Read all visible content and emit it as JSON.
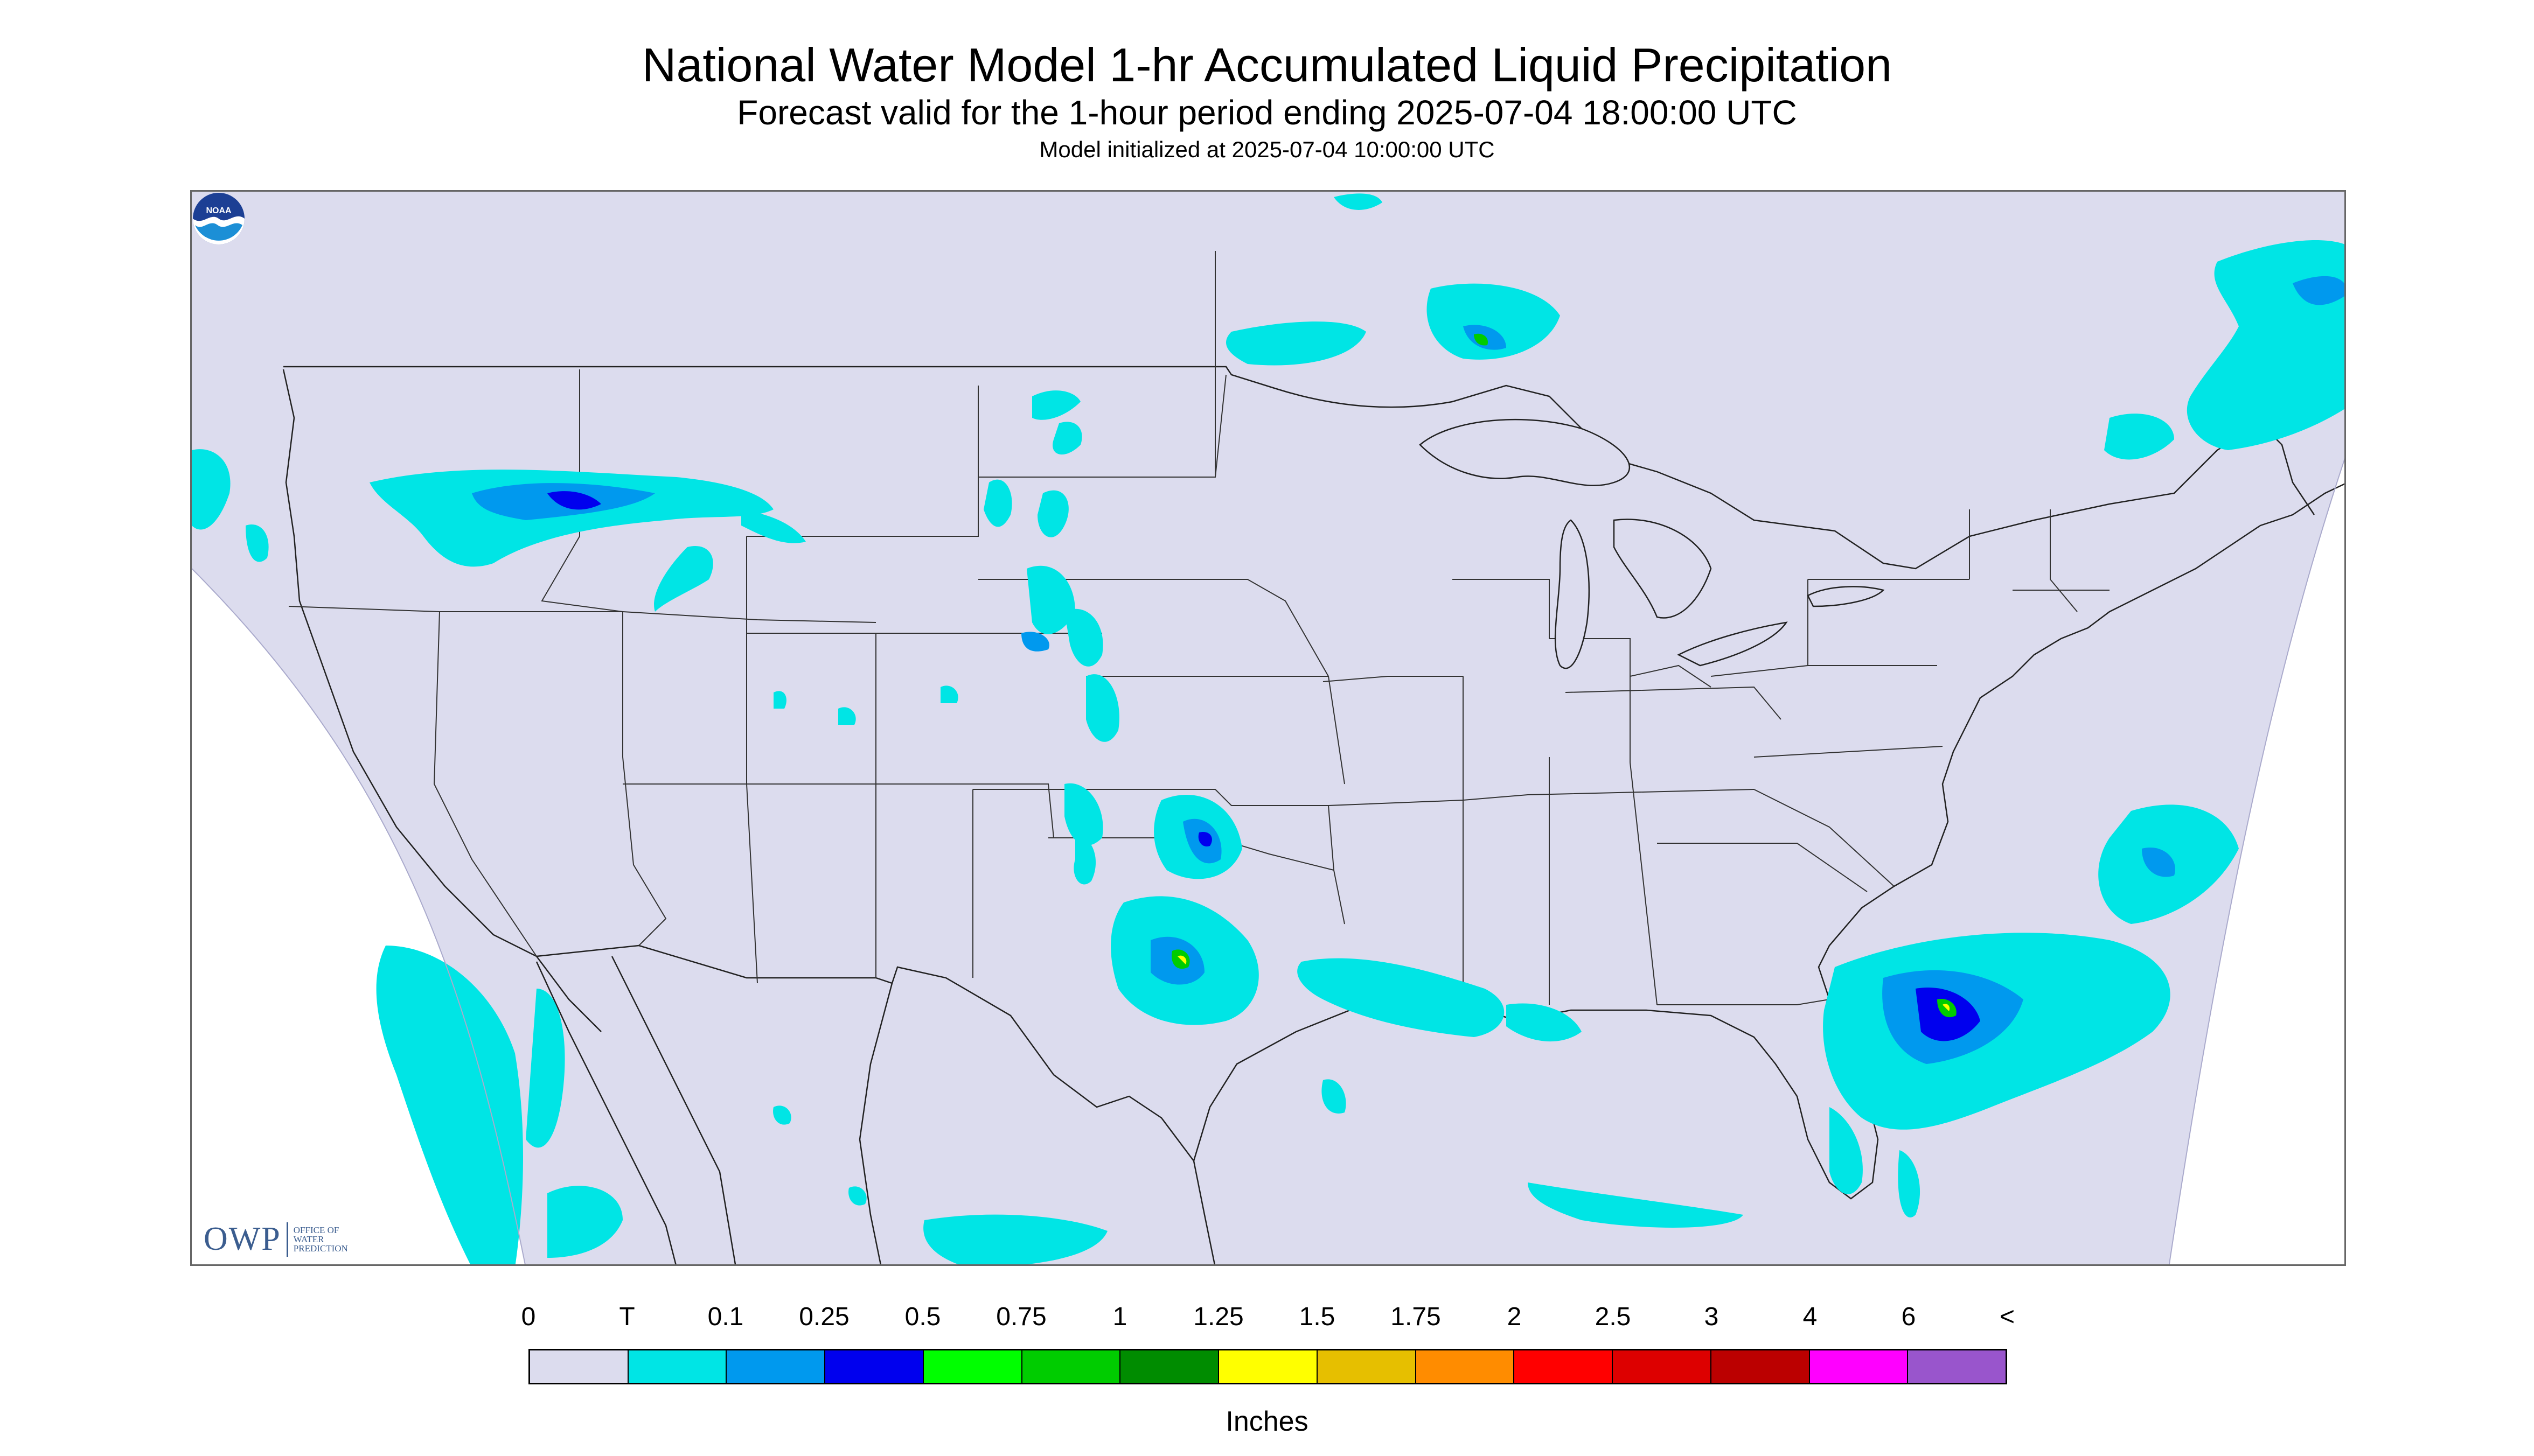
{
  "title": "National Water Model 1-hr Accumulated Liquid Precipitation",
  "subtitle": "Forecast valid for the 1-hour period ending 2025-07-04 18:00:00 UTC",
  "init_line": "Model initialized at 2025-07-04 10:00:00 UTC",
  "colors": {
    "background": "#dcdcee",
    "border": "#333333",
    "trace": "#00e5e5",
    "light": "#0099ee",
    "moderate": "#0000ee",
    "green": "#00ee00",
    "yellow": "#ffff00"
  },
  "map": {
    "projection": "Lambert conformal CONUS",
    "regions_with_precip": [
      "Northern Rockies (Idaho / Montana)",
      "High Plains (Wyoming / Colorado / Dakotas)",
      "Southern Plains (Oklahoma / Texas)",
      "Gulf Coast",
      "Southeast coast / offshore Carolinas",
      "Florida",
      "Ontario / Lake Superior",
      "Quebec / New England",
      "Baja California / Pacific",
      "Mexico"
    ]
  },
  "logos": {
    "owp_letters": "OWP",
    "owp_subtitle": "OFFICE OF WATER PREDICTION",
    "noaa_text": "NOAA",
    "noaa_icon": "noaa-logo"
  },
  "legend": {
    "units": "Inches",
    "tick_labels": [
      "0",
      "T",
      "0.1",
      "0.25",
      "0.5",
      "0.75",
      "1",
      "1.25",
      "1.5",
      "1.75",
      "2",
      "2.5",
      "3",
      "4",
      "6",
      "<"
    ],
    "colors": [
      "#dcdcee",
      "#00e5e5",
      "#0099ee",
      "#0000ee",
      "#00ff00",
      "#00cc00",
      "#008c00",
      "#ffff00",
      "#e6bf00",
      "#ff8c00",
      "#ff0000",
      "#dd0000",
      "#bb0000",
      "#ff00ff",
      "#9955cc"
    ]
  }
}
